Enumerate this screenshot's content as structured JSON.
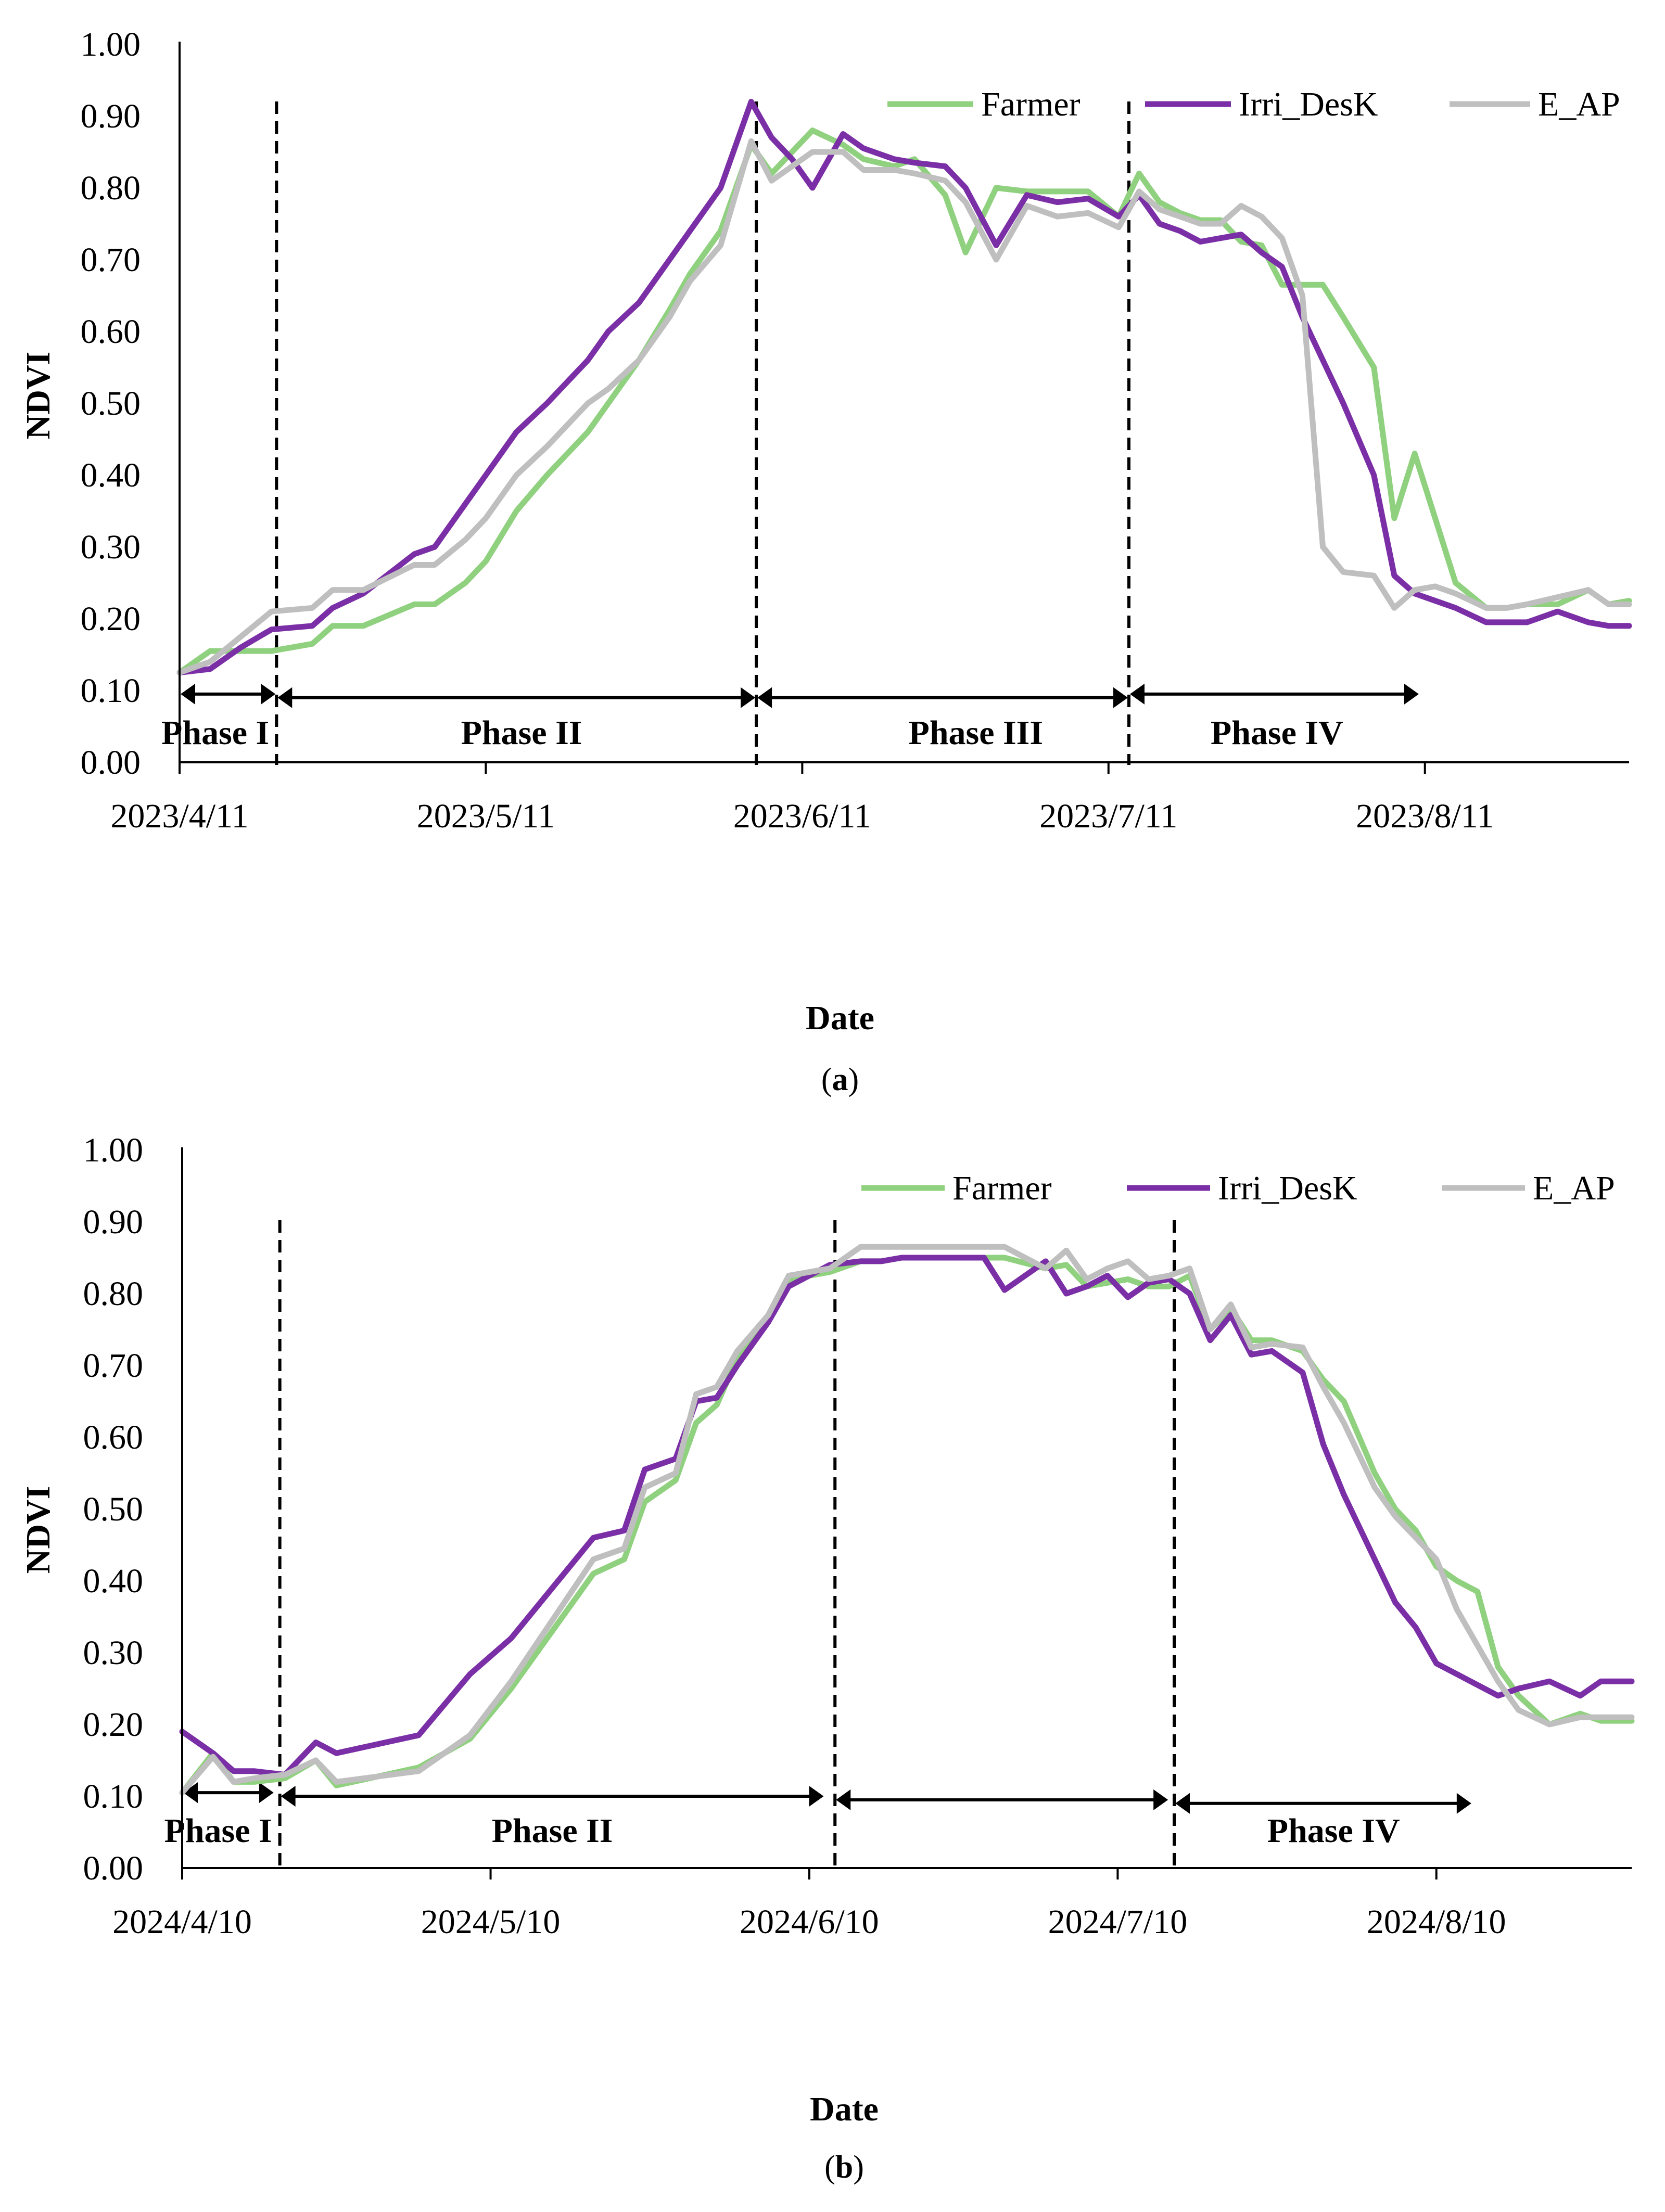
{
  "charts": [
    {
      "id": "a",
      "caption": "(a)",
      "caption_letter": "a",
      "chart_data": {
        "type": "line",
        "title": "",
        "xlabel": "Date",
        "ylabel": "NDVI",
        "ylim": [
          0,
          1
        ],
        "yticks": [
          "0.00",
          "0.10",
          "0.20",
          "0.30",
          "0.40",
          "0.50",
          "0.60",
          "0.70",
          "0.80",
          "0.90",
          "1.00"
        ],
        "xlim_days": [
          0,
          142
        ],
        "xticks": [
          {
            "day": 0,
            "label": "2023/4/11"
          },
          {
            "day": 30,
            "label": "2023/5/11"
          },
          {
            "day": 61,
            "label": "2023/6/11"
          },
          {
            "day": 91,
            "label": "2023/7/11"
          },
          {
            "day": 122,
            "label": "2023/8/11"
          }
        ],
        "legend_position": "top-right",
        "phase_boundaries_days": [
          9.5,
          56.5,
          93
        ],
        "phase_arrows": [
          {
            "from": 0,
            "to": 9.5,
            "y": 0.095,
            "label": "Phase I",
            "label_day": 3.5
          },
          {
            "from": 9.5,
            "to": 56.5,
            "y": 0.09,
            "label": "Phase II",
            "label_day": 33.5
          },
          {
            "from": 56.5,
            "to": 93,
            "y": 0.09,
            "label": "Phase III",
            "label_day": 78
          },
          {
            "from": 93,
            "to": 121.5,
            "y": 0.095,
            "label": "Phase IV",
            "label_day": 107.5
          }
        ],
        "series": [
          {
            "name": "Farmer",
            "color": "#8fd17e",
            "x": [
              0,
              3,
              6,
              9,
              13,
              15,
              18,
              23,
              25,
              28,
              30,
              33,
              36,
              40,
              42,
              45,
              48,
              50,
              53,
              56,
              58,
              60,
              62,
              65,
              67,
              70,
              72,
              75,
              77,
              80,
              83,
              86,
              89,
              92,
              94,
              96,
              98,
              100,
              102,
              104,
              106,
              108,
              110,
              112,
              114,
              117,
              119,
              121,
              123,
              125,
              128,
              130,
              132,
              135,
              138,
              140,
              142
            ],
            "y": [
              0.125,
              0.155,
              0.155,
              0.155,
              0.165,
              0.19,
              0.19,
              0.22,
              0.22,
              0.25,
              0.28,
              0.35,
              0.4,
              0.46,
              0.5,
              0.56,
              0.63,
              0.68,
              0.74,
              0.86,
              0.82,
              0.85,
              0.88,
              0.86,
              0.84,
              0.83,
              0.84,
              0.79,
              0.71,
              0.8,
              0.795,
              0.795,
              0.795,
              0.76,
              0.82,
              0.78,
              0.765,
              0.755,
              0.755,
              0.725,
              0.72,
              0.665,
              0.665,
              0.665,
              0.62,
              0.55,
              0.34,
              0.43,
              0.34,
              0.25,
              0.215,
              0.215,
              0.22,
              0.22,
              0.24,
              0.22,
              0.225
            ]
          },
          {
            "name": "Irri_DesK",
            "color": "#7b2fa6",
            "x": [
              0,
              3,
              6,
              9,
              13,
              15,
              18,
              23,
              25,
              28,
              30,
              33,
              36,
              40,
              42,
              45,
              48,
              50,
              53,
              56,
              58,
              60,
              62,
              65,
              67,
              70,
              72,
              75,
              77,
              80,
              83,
              86,
              89,
              92,
              94,
              96,
              98,
              100,
              102,
              104,
              106,
              108,
              110,
              112,
              114,
              117,
              119,
              121,
              123,
              125,
              128,
              130,
              132,
              135,
              138,
              140,
              142
            ],
            "y": [
              0.125,
              0.13,
              0.16,
              0.185,
              0.19,
              0.215,
              0.235,
              0.29,
              0.3,
              0.36,
              0.4,
              0.46,
              0.5,
              0.56,
              0.6,
              0.64,
              0.7,
              0.74,
              0.8,
              0.92,
              0.87,
              0.84,
              0.8,
              0.875,
              0.855,
              0.84,
              0.835,
              0.83,
              0.8,
              0.72,
              0.79,
              0.78,
              0.785,
              0.76,
              0.79,
              0.75,
              0.74,
              0.725,
              0.73,
              0.735,
              0.71,
              0.69,
              0.62,
              0.56,
              0.5,
              0.4,
              0.26,
              0.235,
              0.225,
              0.215,
              0.195,
              0.195,
              0.195,
              0.21,
              0.195,
              0.19,
              0.19
            ]
          },
          {
            "name": "E_AP",
            "color": "#bfbfbf",
            "x": [
              0,
              3,
              6,
              9,
              13,
              15,
              18,
              23,
              25,
              28,
              30,
              33,
              36,
              40,
              42,
              45,
              48,
              50,
              53,
              56,
              58,
              60,
              62,
              65,
              67,
              70,
              72,
              75,
              77,
              80,
              83,
              86,
              89,
              92,
              94,
              96,
              98,
              100,
              102,
              104,
              106,
              108,
              110,
              112,
              114,
              117,
              119,
              121,
              123,
              125,
              128,
              130,
              132,
              135,
              138,
              140,
              142
            ],
            "y": [
              0.125,
              0.14,
              0.175,
              0.21,
              0.215,
              0.24,
              0.24,
              0.275,
              0.275,
              0.31,
              0.34,
              0.4,
              0.44,
              0.5,
              0.52,
              0.56,
              0.62,
              0.67,
              0.72,
              0.865,
              0.81,
              0.83,
              0.85,
              0.85,
              0.825,
              0.825,
              0.82,
              0.81,
              0.78,
              0.7,
              0.775,
              0.76,
              0.765,
              0.745,
              0.795,
              0.77,
              0.76,
              0.75,
              0.75,
              0.775,
              0.76,
              0.73,
              0.65,
              0.3,
              0.265,
              0.26,
              0.215,
              0.24,
              0.245,
              0.235,
              0.215,
              0.215,
              0.22,
              0.23,
              0.24,
              0.22,
              0.22
            ]
          }
        ]
      }
    },
    {
      "id": "b",
      "caption": "(b)",
      "caption_letter": "b",
      "chart_data": {
        "type": "line",
        "title": "",
        "xlabel": "Date",
        "ylabel": "NDVI",
        "ylim": [
          0,
          1
        ],
        "yticks": [
          "0.00",
          "0.10",
          "0.20",
          "0.30",
          "0.40",
          "0.50",
          "0.60",
          "0.70",
          "0.80",
          "0.90",
          "1.00"
        ],
        "xlim_days": [
          0,
          141
        ],
        "xticks": [
          {
            "day": 0,
            "label": "2024/4/10"
          },
          {
            "day": 30,
            "label": "2024/5/10"
          },
          {
            "day": 61,
            "label": "2024/6/10"
          },
          {
            "day": 91,
            "label": "2024/7/10"
          },
          {
            "day": 122,
            "label": "2024/8/10"
          }
        ],
        "legend_position": "top-right",
        "phase_boundaries_days": [
          9.5,
          63.5,
          96.5
        ],
        "phase_arrows": [
          {
            "from": 0,
            "to": 9,
            "y": 0.105,
            "label": "Phase I",
            "label_day": 3.5
          },
          {
            "from": 9.5,
            "to": 62.5,
            "y": 0.1,
            "label": "Phase II",
            "label_day": 36
          },
          {
            "from": 63.5,
            "to": 96,
            "y": 0.095,
            "label": "",
            "label_day": 80
          },
          {
            "from": 96.5,
            "to": 125.5,
            "y": 0.09,
            "label": "Phase IV",
            "label_day": 112
          }
        ],
        "series": [
          {
            "name": "Farmer",
            "color": "#8fd17e",
            "x": [
              0,
              3,
              5,
              7,
              10,
              13,
              15,
              23,
              28,
              32,
              40,
              43,
              45,
              48,
              50,
              52,
              54,
              57,
              59,
              63,
              66,
              68,
              70,
              78,
              80,
              84,
              86,
              88,
              90,
              92,
              94,
              96,
              98,
              100,
              102,
              104,
              106,
              109,
              111,
              113,
              116,
              118,
              120,
              122,
              124,
              126,
              128,
              130,
              133,
              136,
              138,
              141
            ],
            "y": [
              0.105,
              0.16,
              0.12,
              0.12,
              0.125,
              0.15,
              0.115,
              0.14,
              0.18,
              0.25,
              0.41,
              0.43,
              0.51,
              0.54,
              0.62,
              0.645,
              0.71,
              0.76,
              0.82,
              0.83,
              0.845,
              0.845,
              0.85,
              0.85,
              0.85,
              0.835,
              0.84,
              0.81,
              0.815,
              0.82,
              0.81,
              0.81,
              0.825,
              0.75,
              0.78,
              0.735,
              0.735,
              0.72,
              0.68,
              0.65,
              0.55,
              0.5,
              0.47,
              0.42,
              0.4,
              0.385,
              0.28,
              0.24,
              0.2,
              0.215,
              0.205,
              0.205
            ]
          },
          {
            "name": "Irri_DesK",
            "color": "#7b2fa6",
            "x": [
              0,
              3,
              5,
              7,
              10,
              13,
              15,
              23,
              28,
              32,
              40,
              43,
              45,
              48,
              50,
              52,
              54,
              57,
              59,
              63,
              66,
              68,
              70,
              78,
              80,
              84,
              86,
              88,
              90,
              92,
              94,
              96,
              98,
              100,
              102,
              104,
              106,
              109,
              111,
              113,
              116,
              118,
              120,
              122,
              124,
              126,
              128,
              130,
              133,
              136,
              138,
              141
            ],
            "y": [
              0.19,
              0.16,
              0.135,
              0.135,
              0.13,
              0.175,
              0.16,
              0.185,
              0.27,
              0.32,
              0.46,
              0.47,
              0.555,
              0.57,
              0.65,
              0.655,
              0.7,
              0.76,
              0.81,
              0.84,
              0.845,
              0.845,
              0.85,
              0.85,
              0.805,
              0.845,
              0.8,
              0.81,
              0.825,
              0.795,
              0.815,
              0.82,
              0.8,
              0.735,
              0.77,
              0.715,
              0.72,
              0.69,
              0.59,
              0.52,
              0.43,
              0.37,
              0.335,
              0.285,
              0.27,
              0.255,
              0.24,
              0.25,
              0.26,
              0.24,
              0.26,
              0.26
            ]
          },
          {
            "name": "E_AP",
            "color": "#bfbfbf",
            "x": [
              0,
              3,
              5,
              7,
              10,
              13,
              15,
              23,
              28,
              32,
              40,
              43,
              45,
              48,
              50,
              52,
              54,
              57,
              59,
              63,
              66,
              68,
              70,
              78,
              80,
              84,
              86,
              88,
              90,
              92,
              94,
              96,
              98,
              100,
              102,
              104,
              106,
              109,
              111,
              113,
              116,
              118,
              120,
              122,
              124,
              126,
              128,
              130,
              133,
              136,
              138,
              141
            ],
            "y": [
              0.105,
              0.155,
              0.12,
              0.125,
              0.13,
              0.15,
              0.12,
              0.135,
              0.185,
              0.26,
              0.43,
              0.445,
              0.53,
              0.55,
              0.66,
              0.67,
              0.72,
              0.77,
              0.825,
              0.835,
              0.865,
              0.865,
              0.865,
              0.865,
              0.865,
              0.835,
              0.86,
              0.82,
              0.835,
              0.845,
              0.82,
              0.825,
              0.835,
              0.75,
              0.785,
              0.725,
              0.73,
              0.725,
              0.67,
              0.62,
              0.53,
              0.49,
              0.46,
              0.43,
              0.36,
              0.31,
              0.26,
              0.22,
              0.2,
              0.21,
              0.21,
              0.21
            ]
          }
        ]
      }
    }
  ]
}
